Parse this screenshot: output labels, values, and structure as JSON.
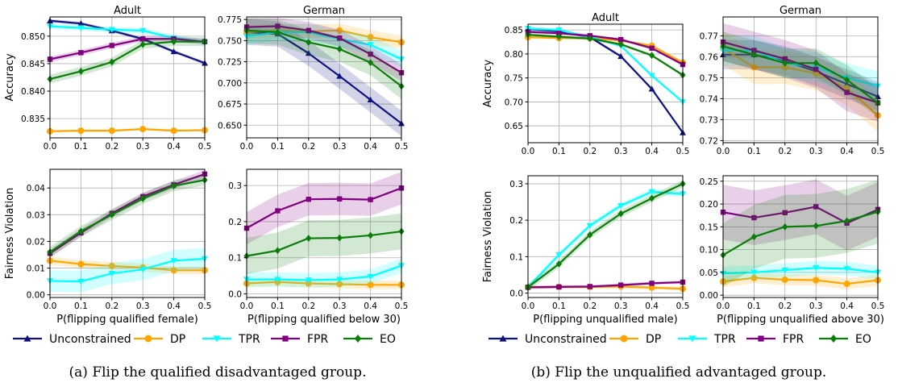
{
  "figure": {
    "captions": [
      "(a) Flip the qualified disadvantaged group.",
      "(b) Flip the unqualified advantaged group."
    ],
    "legend": [
      "Unconstrained",
      "DP",
      "TPR",
      "FPR",
      "EO"
    ]
  },
  "series_style": {
    "Unconstrained": {
      "color": "#0f127e",
      "marker": "triangle-up"
    },
    "DP": {
      "color": "#ffa500",
      "marker": "circle"
    },
    "TPR": {
      "color": "#00ffff",
      "marker": "triangle-down"
    },
    "FPR": {
      "color": "#800080",
      "marker": "square"
    },
    "EO": {
      "color": "#0b7d0b",
      "marker": "diamond"
    }
  },
  "chart_data": [
    {
      "type": "line",
      "panel": "a",
      "title": "Adult",
      "xlabel": "",
      "ylabel": "Accuracy",
      "x": [
        0.0,
        0.1,
        0.2,
        0.3,
        0.4,
        0.5
      ],
      "ylim": [
        0.8315,
        0.8535
      ],
      "yticks": [
        0.835,
        0.84,
        0.845,
        0.85
      ],
      "ytick_labels": [
        "0.835",
        "0.840",
        "0.845",
        "0.850"
      ],
      "grid": true,
      "series": [
        {
          "name": "Unconstrained",
          "values": [
            0.8528,
            0.8523,
            0.851,
            0.8495,
            0.8472,
            0.8451
          ],
          "band": 0.0003
        },
        {
          "name": "DP",
          "values": [
            0.8327,
            0.8328,
            0.8328,
            0.8331,
            0.8328,
            0.8329
          ],
          "band": 0.0002
        },
        {
          "name": "TPR",
          "values": [
            0.8518,
            0.8515,
            0.8512,
            0.851,
            0.8497,
            0.8489
          ],
          "band": 0.0005
        },
        {
          "name": "FPR",
          "values": [
            0.8458,
            0.847,
            0.8483,
            0.8495,
            0.8495,
            0.849
          ],
          "band": 0.0005
        },
        {
          "name": "EO",
          "values": [
            0.8422,
            0.8436,
            0.8453,
            0.8485,
            0.849,
            0.849
          ],
          "band": 0.0008
        }
      ]
    },
    {
      "type": "line",
      "panel": "a",
      "title": "German",
      "xlabel": "",
      "ylabel": "",
      "x": [
        0.0,
        0.1,
        0.2,
        0.3,
        0.4,
        0.5
      ],
      "ylim": [
        0.635,
        0.778
      ],
      "yticks": [
        0.65,
        0.675,
        0.7,
        0.725,
        0.75,
        0.775
      ],
      "ytick_labels": [
        "0.650",
        "0.675",
        "0.700",
        "0.725",
        "0.750",
        "0.775"
      ],
      "grid": true,
      "series": [
        {
          "name": "Unconstrained",
          "values": [
            0.76,
            0.758,
            0.735,
            0.708,
            0.68,
            0.652
          ],
          "band": 0.015
        },
        {
          "name": "DP",
          "values": [
            0.76,
            0.762,
            0.761,
            0.762,
            0.754,
            0.748
          ],
          "band": 0.008
        },
        {
          "name": "TPR",
          "values": [
            0.755,
            0.76,
            0.76,
            0.752,
            0.745,
            0.728
          ],
          "band": 0.01
        },
        {
          "name": "FPR",
          "values": [
            0.766,
            0.767,
            0.762,
            0.753,
            0.734,
            0.712
          ],
          "band": 0.01
        },
        {
          "name": "EO",
          "values": [
            0.762,
            0.76,
            0.748,
            0.74,
            0.724,
            0.696
          ],
          "band": 0.015
        }
      ]
    },
    {
      "type": "line",
      "panel": "a",
      "title": "",
      "xlabel": "P(flipping qualified female)",
      "ylabel": "Fairness Violation",
      "x": [
        0.0,
        0.1,
        0.2,
        0.3,
        0.4,
        0.5
      ],
      "ylim": [
        -0.001,
        0.047
      ],
      "yticks": [
        0.0,
        0.01,
        0.02,
        0.03,
        0.04
      ],
      "ytick_labels": [
        "0.00",
        "0.01",
        "0.02",
        "0.03",
        "0.04"
      ],
      "grid": true,
      "series": [
        {
          "name": "DP",
          "values": [
            0.0128,
            0.0115,
            0.0108,
            0.0102,
            0.0092,
            0.0092
          ],
          "band": 0.0015
        },
        {
          "name": "TPR",
          "values": [
            0.0052,
            0.005,
            0.008,
            0.0095,
            0.0128,
            0.0135
          ],
          "band": 0.004
        },
        {
          "name": "FPR",
          "values": [
            0.0155,
            0.0232,
            0.0305,
            0.0368,
            0.0412,
            0.0452
          ],
          "band": 0.0015
        },
        {
          "name": "EO",
          "values": [
            0.016,
            0.0238,
            0.03,
            0.036,
            0.0408,
            0.043
          ],
          "band": 0.002
        }
      ]
    },
    {
      "type": "line",
      "panel": "a",
      "title": "",
      "xlabel": "P(flipping qualified below 30)",
      "ylabel": "",
      "x": [
        0.0,
        0.1,
        0.2,
        0.3,
        0.4,
        0.5
      ],
      "ylim": [
        -0.01,
        0.345
      ],
      "yticks": [
        0.0,
        0.1,
        0.2,
        0.3
      ],
      "ytick_labels": [
        "0.0",
        "0.1",
        "0.2",
        "0.3"
      ],
      "grid": true,
      "series": [
        {
          "name": "DP",
          "values": [
            0.029,
            0.033,
            0.029,
            0.027,
            0.025,
            0.025
          ],
          "band": 0.012
        },
        {
          "name": "TPR",
          "values": [
            0.04,
            0.04,
            0.038,
            0.04,
            0.048,
            0.078
          ],
          "band": 0.02
        },
        {
          "name": "FPR",
          "values": [
            0.182,
            0.23,
            0.262,
            0.263,
            0.261,
            0.293
          ],
          "band": 0.045
        },
        {
          "name": "EO",
          "values": [
            0.105,
            0.12,
            0.154,
            0.155,
            0.162,
            0.173
          ],
          "band": 0.05
        }
      ]
    },
    {
      "type": "line",
      "panel": "b",
      "title": "Adult",
      "xlabel": "",
      "ylabel": "Accuracy",
      "x": [
        0.0,
        0.1,
        0.2,
        0.3,
        0.4,
        0.5
      ],
      "ylim": [
        0.615,
        0.862
      ],
      "yticks": [
        0.65,
        0.7,
        0.75,
        0.8,
        0.85
      ],
      "ytick_labels": [
        "0.65",
        "0.70",
        "0.75",
        "0.80",
        "0.85"
      ],
      "grid": true,
      "series": [
        {
          "name": "Unconstrained",
          "values": [
            0.852,
            0.847,
            0.835,
            0.795,
            0.727,
            0.636
          ],
          "band": 0.003
        },
        {
          "name": "DP",
          "values": [
            0.835,
            0.833,
            0.833,
            0.828,
            0.817,
            0.782
          ],
          "band": 0.003
        },
        {
          "name": "TPR",
          "values": [
            0.853,
            0.85,
            0.835,
            0.817,
            0.755,
            0.7
          ],
          "band": 0.003
        },
        {
          "name": "FPR",
          "values": [
            0.846,
            0.843,
            0.838,
            0.83,
            0.812,
            0.778
          ],
          "band": 0.003
        },
        {
          "name": "EO",
          "values": [
            0.84,
            0.836,
            0.832,
            0.82,
            0.797,
            0.756
          ],
          "band": 0.003
        }
      ]
    },
    {
      "type": "line",
      "panel": "b",
      "title": "German",
      "xlabel": "",
      "ylabel": "",
      "x": [
        0.0,
        0.1,
        0.2,
        0.3,
        0.4,
        0.5
      ],
      "ylim": [
        0.719,
        0.779
      ],
      "yticks": [
        0.72,
        0.73,
        0.74,
        0.75,
        0.76,
        0.77
      ],
      "ytick_labels": [
        "0.72",
        "0.73",
        "0.74",
        "0.75",
        "0.76",
        "0.77"
      ],
      "grid": true,
      "series": [
        {
          "name": "Unconstrained",
          "values": [
            0.761,
            0.761,
            0.758,
            0.753,
            0.747,
            0.741
          ],
          "band": 0.007
        },
        {
          "name": "DP",
          "values": [
            0.764,
            0.755,
            0.755,
            0.752,
            0.745,
            0.732
          ],
          "band": 0.008
        },
        {
          "name": "TPR",
          "values": [
            0.763,
            0.763,
            0.757,
            0.755,
            0.75,
            0.746
          ],
          "band": 0.007
        },
        {
          "name": "FPR",
          "values": [
            0.767,
            0.763,
            0.759,
            0.754,
            0.743,
            0.738
          ],
          "band": 0.009
        },
        {
          "name": "EO",
          "values": [
            0.765,
            0.761,
            0.757,
            0.757,
            0.749,
            0.738
          ],
          "band": 0.007
        }
      ]
    },
    {
      "type": "line",
      "panel": "b",
      "title": "",
      "xlabel": "P(flipping unqualified male)",
      "ylabel": "Fairness Violation",
      "x": [
        0.0,
        0.1,
        0.2,
        0.3,
        0.4,
        0.5
      ],
      "ylim": [
        -0.012,
        0.322
      ],
      "yticks": [
        0.0,
        0.1,
        0.2,
        0.3
      ],
      "ytick_labels": [
        "0.0",
        "0.1",
        "0.2",
        "0.3"
      ],
      "grid": true,
      "series": [
        {
          "name": "DP",
          "values": [
            0.016,
            0.017,
            0.017,
            0.018,
            0.015,
            0.012
          ],
          "band": 0.005
        },
        {
          "name": "TPR",
          "values": [
            0.016,
            0.105,
            0.185,
            0.24,
            0.278,
            0.272
          ],
          "band": 0.008
        },
        {
          "name": "FPR",
          "values": [
            0.016,
            0.017,
            0.018,
            0.022,
            0.027,
            0.03
          ],
          "band": 0.004
        },
        {
          "name": "EO",
          "values": [
            0.016,
            0.08,
            0.16,
            0.218,
            0.26,
            0.3
          ],
          "band": 0.01
        }
      ]
    },
    {
      "type": "line",
      "panel": "b",
      "title": "",
      "xlabel": "P(flipping unqualified above 30)",
      "ylabel": "",
      "x": [
        0.0,
        0.1,
        0.2,
        0.3,
        0.4,
        0.5
      ],
      "ylim": [
        -0.005,
        0.262
      ],
      "yticks": [
        0.0,
        0.05,
        0.1,
        0.15,
        0.2,
        0.25
      ],
      "ytick_labels": [
        "0.00",
        "0.05",
        "0.10",
        "0.15",
        "0.20",
        "0.25"
      ],
      "grid": true,
      "series": [
        {
          "name": "DP",
          "values": [
            0.03,
            0.038,
            0.034,
            0.033,
            0.025,
            0.033
          ],
          "band": 0.012
        },
        {
          "name": "TPR",
          "values": [
            0.048,
            0.05,
            0.055,
            0.06,
            0.058,
            0.05
          ],
          "band": 0.015
        },
        {
          "name": "FPR",
          "values": [
            0.182,
            0.17,
            0.181,
            0.194,
            0.158,
            0.188
          ],
          "band": 0.06
        },
        {
          "name": "EO",
          "values": [
            0.088,
            0.128,
            0.15,
            0.152,
            0.163,
            0.183
          ],
          "band": 0.07
        }
      ]
    }
  ]
}
